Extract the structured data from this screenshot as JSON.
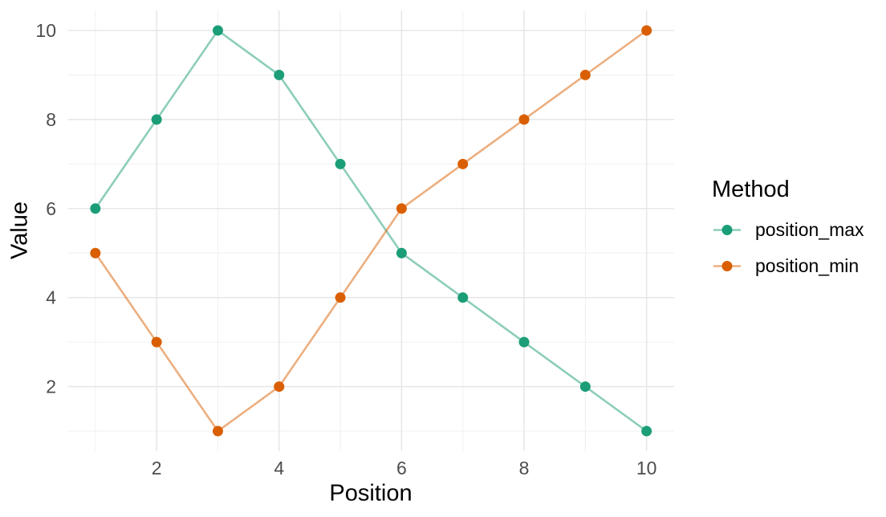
{
  "chart_data": {
    "type": "line",
    "title": "",
    "xlabel": "Position",
    "ylabel": "Value",
    "legend_title": "Method",
    "legend_position": "right",
    "x": [
      1,
      2,
      3,
      4,
      5,
      6,
      7,
      8,
      9,
      10
    ],
    "series": [
      {
        "name": "position_max",
        "color": "#1B9E77",
        "line_color": "rgba(27,158,119,0.5)",
        "values": [
          6,
          8,
          10,
          9,
          7,
          5,
          4,
          3,
          2,
          1
        ]
      },
      {
        "name": "position_min",
        "color": "#D95F02",
        "line_color": "rgba(217,95,2,0.5)",
        "values": [
          5,
          3,
          1,
          2,
          4,
          6,
          7,
          8,
          9,
          10
        ]
      }
    ],
    "xlim": [
      0.55,
      10.45
    ],
    "ylim": [
      0.55,
      10.45
    ],
    "x_ticks": [
      2,
      4,
      6,
      8,
      10
    ],
    "y_ticks": [
      2,
      4,
      6,
      8,
      10
    ],
    "minor_gridlines": [
      1,
      3,
      5,
      7,
      9
    ],
    "grid": true,
    "background": "#FFFFFF",
    "grid_major_color": "#E5E5E5",
    "grid_minor_color": "#F0F0F0",
    "tick_label_color": "#4D4D4D",
    "axis_title_color": "#000000"
  }
}
